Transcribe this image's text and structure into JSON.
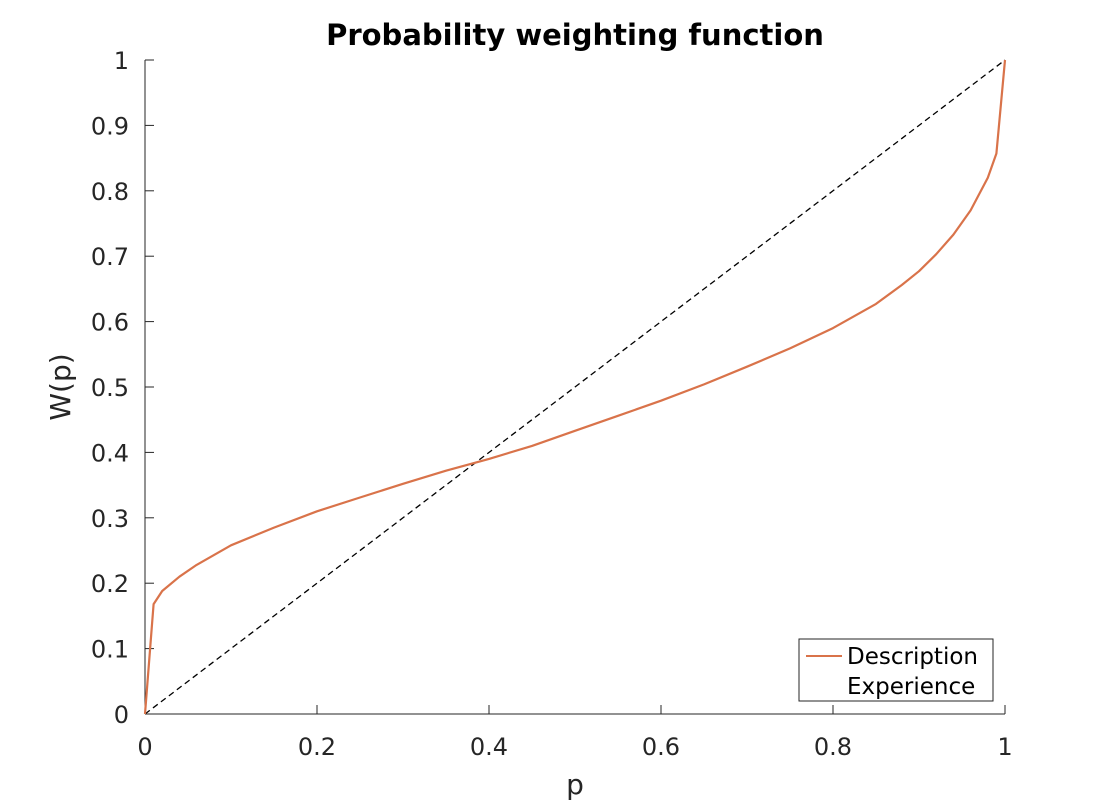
{
  "chart_data": {
    "type": "line",
    "title": "Probability weighting function",
    "xlabel": "p",
    "ylabel": "W(p)",
    "xlim": [
      0,
      1
    ],
    "ylim": [
      0,
      1
    ],
    "xticks": [
      "0",
      "0.2",
      "0.4",
      "0.6",
      "0.8",
      "1"
    ],
    "yticks": [
      "0",
      "0.1",
      "0.2",
      "0.3",
      "0.4",
      "0.5",
      "0.6",
      "0.7",
      "0.8",
      "0.9",
      "1"
    ],
    "grid": false,
    "legend_position": "bottom-right",
    "series": [
      {
        "name": "Description",
        "color": "#d9734a",
        "style": "solid",
        "x": [
          0,
          0.01,
          0.02,
          0.04,
          0.06,
          0.1,
          0.15,
          0.2,
          0.25,
          0.3,
          0.35,
          0.4,
          0.45,
          0.5,
          0.55,
          0.6,
          0.65,
          0.7,
          0.75,
          0.8,
          0.85,
          0.88,
          0.9,
          0.92,
          0.94,
          0.96,
          0.98,
          0.99,
          1
        ],
        "y": [
          0,
          0.168,
          0.188,
          0.21,
          0.228,
          0.258,
          0.285,
          0.31,
          0.331,
          0.352,
          0.372,
          0.39,
          0.41,
          0.433,
          0.456,
          0.479,
          0.504,
          0.531,
          0.559,
          0.59,
          0.627,
          0.656,
          0.677,
          0.703,
          0.733,
          0.77,
          0.82,
          0.857,
          1
        ]
      },
      {
        "name": "Experience",
        "color": "#ffffff",
        "style": "none",
        "x": [],
        "y": []
      },
      {
        "name": "",
        "color": "#000000",
        "style": "dashed",
        "x": [
          0,
          1
        ],
        "y": [
          0,
          1
        ]
      }
    ]
  }
}
